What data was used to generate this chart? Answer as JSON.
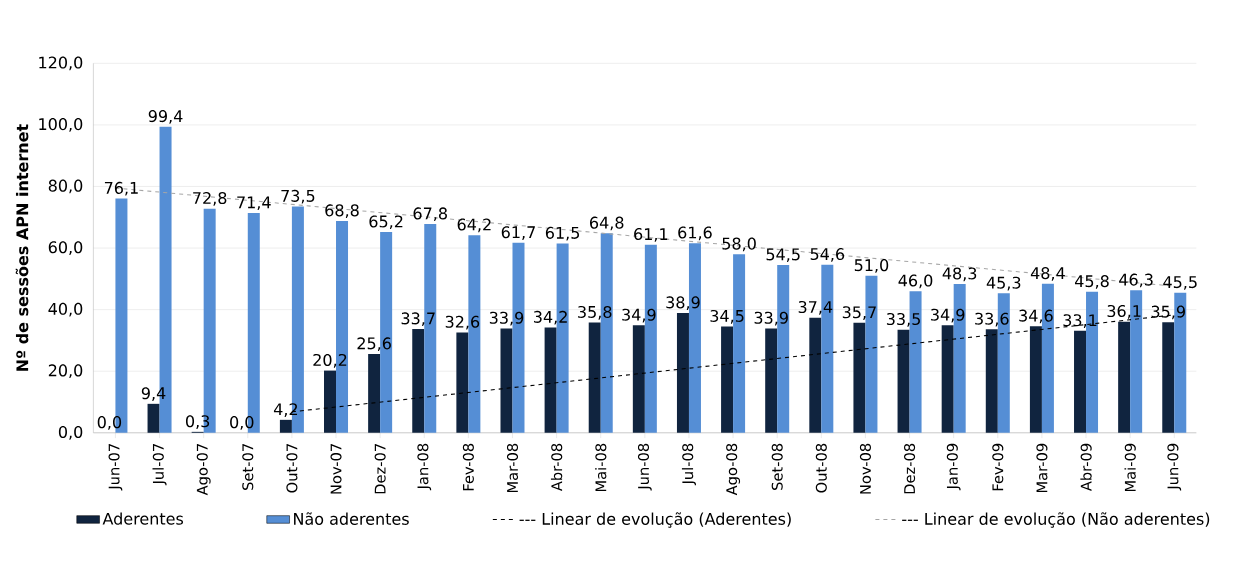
{
  "chart_data": {
    "type": "bar",
    "ylabel": "Nº de sessões APN internet",
    "categories": [
      "Jun-07",
      "Jul-07",
      "Ago-07",
      "Set-07",
      "Out-07",
      "Nov-07",
      "Dez-07",
      "Jan-08",
      "Fev-08",
      "Mar-08",
      "Abr-08",
      "Mai-08",
      "Jun-08",
      "Jul-08",
      "Ago-08",
      "Set-08",
      "Out-08",
      "Nov-08",
      "Dez-08",
      "Jan-09",
      "Fev-09",
      "Mar-09",
      "Abr-09",
      "Mai-09",
      "Jun-09"
    ],
    "series": [
      {
        "name": "Aderentes",
        "color": "#10243f",
        "values": [
          0.0,
          9.4,
          0.3,
          0.0,
          4.2,
          20.2,
          25.6,
          33.7,
          32.6,
          33.9,
          34.2,
          35.8,
          34.9,
          38.9,
          34.5,
          33.9,
          37.4,
          35.7,
          33.5,
          34.9,
          33.6,
          34.6,
          33.1,
          36.1,
          35.9
        ],
        "value_labels": [
          "0,0",
          "9,4",
          "0,3",
          "0,0",
          "4,2",
          "20,2",
          "25,6",
          "33,7",
          "32,6",
          "33,9",
          "34,2",
          "35,8",
          "34,9",
          "38,9",
          "34,5",
          "33,9",
          "37,4",
          "35,7",
          "33,5",
          "34,9",
          "33,6",
          "34,6",
          "33,1",
          "36,1",
          "35,9"
        ]
      },
      {
        "name": "Não aderentes",
        "color": "#558ed5",
        "values": [
          76.1,
          99.4,
          72.8,
          71.4,
          73.5,
          68.8,
          65.2,
          67.8,
          64.2,
          61.7,
          61.5,
          64.8,
          61.1,
          61.6,
          58.0,
          54.5,
          54.6,
          51.0,
          46.0,
          48.3,
          45.3,
          48.4,
          45.8,
          46.3,
          45.5
        ],
        "value_labels": [
          "76,1",
          "99,4",
          "72,8",
          "71,4",
          "73,5",
          "68,8",
          "65,2",
          "67,8",
          "64,2",
          "61,7",
          "61,5",
          "64,8",
          "61,1",
          "61,6",
          "58,0",
          "54,5",
          "54,6",
          "51,0",
          "46,0",
          "48,3",
          "45,3",
          "48,4",
          "45,8",
          "46,3",
          "45,5"
        ]
      },
      {
        "name": "--- Linear de evolução (Aderentes)",
        "type": "line",
        "line_style": "dashed",
        "color": "#000000",
        "x": [
          "Out-07",
          "Jun-09"
        ],
        "values": [
          6.8,
          38.3
        ]
      },
      {
        "name": "--- Linear de evolução (Não aderentes)",
        "type": "line",
        "line_style": "dashed",
        "color": "#a6a6a6",
        "x": [
          "Jun-07",
          "Jun-09"
        ],
        "values": [
          79.5,
          47.6
        ]
      }
    ],
    "ylim": [
      0,
      120
    ],
    "yticks": [
      {
        "value": 0,
        "label": "0,0"
      },
      {
        "value": 20,
        "label": "20,0"
      },
      {
        "value": 40,
        "label": "40,0"
      },
      {
        "value": 60,
        "label": "60,0"
      },
      {
        "value": 80,
        "label": "80,0"
      },
      {
        "value": 100,
        "label": "100,0"
      },
      {
        "value": 120,
        "label": "120,0"
      }
    ],
    "grid": "y",
    "legend": "bottom",
    "marker": "none"
  }
}
